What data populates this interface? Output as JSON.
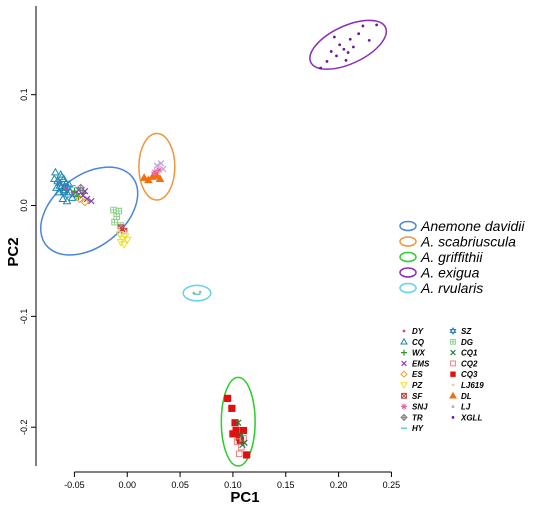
{
  "chart_data": {
    "type": "scatter",
    "xlabel": "PC1",
    "ylabel": "PC2",
    "xlim": [
      -0.075,
      0.26
    ],
    "ylim": [
      -0.235,
      0.18
    ],
    "xticks": [
      "-0.05",
      "0.00",
      "0.05",
      "0.10",
      "0.15",
      "0.20",
      "0.25"
    ],
    "xtick_values": [
      -0.05,
      0.0,
      0.05,
      0.1,
      0.15,
      0.2,
      0.25
    ],
    "yticks": [
      "-0.2",
      "-0.1",
      "0.0",
      "0.1"
    ],
    "ytick_values": [
      -0.2,
      -0.1,
      0.0,
      0.1
    ],
    "species_legend": [
      {
        "label": "Anemone davidii",
        "color": "#4a86d8"
      },
      {
        "label": "A. scabriuscula",
        "color": "#f0963a"
      },
      {
        "label": "A. griffithii",
        "color": "#2ecc2e"
      },
      {
        "label": "A. exigua",
        "color": "#8a2ab8"
      },
      {
        "label": "A. rvularis",
        "color": "#66d0e8"
      }
    ],
    "population_legend": {
      "left": [
        {
          "label": "DY",
          "marker": "dot",
          "color": "#e04080"
        },
        {
          "label": "CQ",
          "marker": "triangle",
          "color": "#1a8ab0"
        },
        {
          "label": "WX",
          "marker": "plus",
          "color": "#2a9a2a"
        },
        {
          "label": "EMS",
          "marker": "x",
          "color": "#8a3ab8"
        },
        {
          "label": "ES",
          "marker": "diamond",
          "color": "#e8a020"
        },
        {
          "label": "PZ",
          "marker": "triangle-down",
          "color": "#f0e020"
        },
        {
          "label": "SF",
          "marker": "square-x",
          "color": "#c04040"
        },
        {
          "label": "SNJ",
          "marker": "asterisk",
          "color": "#e860a0"
        },
        {
          "label": "TR",
          "marker": "diamond-plus",
          "color": "#808080"
        },
        {
          "label": "HY",
          "marker": "hline",
          "color": "#40c0c0"
        }
      ],
      "right": [
        {
          "label": "SZ",
          "marker": "star",
          "color": "#3080c0"
        },
        {
          "label": "DG",
          "marker": "grid",
          "color": "#80d080"
        },
        {
          "label": "CQ1",
          "marker": "x",
          "color": "#208040"
        },
        {
          "label": "CQ2",
          "marker": "square-open",
          "color": "#f08080"
        },
        {
          "label": "CQ3",
          "marker": "square",
          "color": "#e01010"
        },
        {
          "label": "LJ619",
          "marker": "dot",
          "color": "#f0d0a0"
        },
        {
          "label": "DL",
          "marker": "triangle",
          "color": "#f07010"
        },
        {
          "label": "LJ",
          "marker": "dot",
          "color": "#b0b0b0"
        },
        {
          "label": "XGLL",
          "marker": "dot",
          "color": "#6a1a9a"
        }
      ]
    },
    "ellipses": [
      {
        "species": "Anemone davidii",
        "cx": -0.036,
        "cy": -0.005,
        "rx": 0.052,
        "ry": 0.032,
        "angle_deg": 38
      },
      {
        "species": "A. scabriuscula",
        "cx": 0.028,
        "cy": 0.035,
        "rx": 0.017,
        "ry": 0.03,
        "angle_deg": 0
      },
      {
        "species": "A. griffithii",
        "cx": 0.105,
        "cy": -0.195,
        "rx": 0.016,
        "ry": 0.04,
        "angle_deg": 0
      },
      {
        "species": "A. exigua",
        "cx": 0.209,
        "cy": 0.145,
        "rx": 0.039,
        "ry": 0.017,
        "angle_deg": 25
      },
      {
        "species": "A. rvularis",
        "cx": 0.066,
        "cy": -0.079,
        "rx": 0.013,
        "ry": 0.007,
        "angle_deg": 0
      }
    ],
    "series": [
      {
        "name": "CQ",
        "marker": "triangle",
        "color": "#1a8ab0",
        "points": [
          [
            -0.068,
            0.03
          ],
          [
            -0.066,
            0.022
          ],
          [
            -0.064,
            0.018
          ],
          [
            -0.062,
            0.026
          ],
          [
            -0.06,
            0.014
          ],
          [
            -0.058,
            0.02
          ],
          [
            -0.056,
            0.01
          ],
          [
            -0.065,
            0.012
          ],
          [
            -0.061,
            0.006
          ],
          [
            -0.057,
            0.004
          ],
          [
            -0.063,
            0.028
          ],
          [
            -0.059,
            0.017
          ],
          [
            -0.054,
            0.012
          ],
          [
            -0.052,
            0.007
          ],
          [
            -0.067,
            0.016
          ],
          [
            -0.055,
            0.019
          ],
          [
            -0.06,
            0.024
          ],
          [
            -0.069,
            0.024
          ]
        ]
      },
      {
        "name": "SZ",
        "marker": "star",
        "color": "#3080c0",
        "points": [
          [
            -0.064,
            0.02
          ],
          [
            -0.06,
            0.012
          ],
          [
            -0.056,
            0.016
          ],
          [
            -0.05,
            0.01
          ]
        ]
      },
      {
        "name": "DY",
        "marker": "dot",
        "color": "#e04080",
        "points": [
          [
            -0.058,
            0.015
          ],
          [
            -0.052,
            0.012
          ],
          [
            -0.046,
            0.01
          ]
        ]
      },
      {
        "name": "WX",
        "marker": "plus",
        "color": "#2a9a2a",
        "points": [
          [
            -0.05,
            0.013
          ],
          [
            -0.046,
            0.008
          ],
          [
            -0.042,
            0.011
          ]
        ]
      },
      {
        "name": "EMS",
        "marker": "x",
        "color": "#8a3ab8",
        "points": [
          [
            -0.046,
            0.014
          ],
          [
            -0.042,
            0.009
          ],
          [
            -0.038,
            0.006
          ],
          [
            -0.034,
            0.004
          ],
          [
            -0.04,
            0.013
          ]
        ]
      },
      {
        "name": "ES",
        "marker": "diamond",
        "color": "#e8a020",
        "points": [
          [
            -0.045,
            0.006
          ],
          [
            -0.04,
            0.003
          ]
        ]
      },
      {
        "name": "HY",
        "marker": "hline",
        "color": "#40c0c0",
        "points": [
          [
            -0.052,
            0.018
          ],
          [
            -0.047,
            0.016
          ]
        ]
      },
      {
        "name": "TR",
        "marker": "diamond-plus",
        "color": "#808080",
        "points": [
          [
            -0.044,
            0.016
          ]
        ]
      },
      {
        "name": "DG",
        "marker": "grid",
        "color": "#80d080",
        "points": [
          [
            -0.013,
            -0.004
          ],
          [
            -0.01,
            -0.01
          ],
          [
            -0.008,
            -0.005
          ],
          [
            -0.012,
            -0.015
          ],
          [
            -0.006,
            -0.018
          ]
        ]
      },
      {
        "name": "SF",
        "marker": "square-x",
        "color": "#c04040",
        "points": [
          [
            -0.006,
            -0.02
          ],
          [
            -0.003,
            -0.023
          ]
        ]
      },
      {
        "name": "PZ",
        "marker": "triangle-down",
        "color": "#f0e020",
        "points": [
          [
            -0.007,
            -0.026
          ],
          [
            -0.004,
            -0.03
          ],
          [
            -0.002,
            -0.028
          ],
          [
            -0.006,
            -0.033
          ],
          [
            -0.003,
            -0.035
          ],
          [
            0.0,
            -0.031
          ]
        ]
      },
      {
        "name": "LJ619",
        "marker": "dot",
        "color": "#f0d0a0",
        "points": [
          [
            -0.008,
            -0.022
          ],
          [
            -0.001,
            -0.025
          ]
        ]
      },
      {
        "name": "DL",
        "marker": "triangle",
        "color": "#f07010",
        "points": [
          [
            0.016,
            0.025
          ],
          [
            0.02,
            0.023
          ],
          [
            0.024,
            0.026
          ],
          [
            0.028,
            0.027
          ],
          [
            0.031,
            0.024
          ]
        ]
      },
      {
        "name": "SNJ",
        "marker": "asterisk",
        "color": "#e860a0",
        "points": [
          [
            0.026,
            0.03
          ],
          [
            0.03,
            0.032
          ]
        ]
      },
      {
        "name": "EMS",
        "marker": "x",
        "color": "#c0a0d8",
        "points": [
          [
            0.028,
            0.036
          ],
          [
            0.032,
            0.038
          ],
          [
            0.034,
            0.033
          ]
        ]
      },
      {
        "name": "XGLL",
        "marker": "dot",
        "color": "#6a1a9a",
        "points": [
          [
            0.183,
            0.124
          ],
          [
            0.189,
            0.13
          ],
          [
            0.193,
            0.139
          ],
          [
            0.198,
            0.135
          ],
          [
            0.201,
            0.145
          ],
          [
            0.205,
            0.141
          ],
          [
            0.207,
            0.131
          ],
          [
            0.211,
            0.15
          ],
          [
            0.214,
            0.143
          ],
          [
            0.219,
            0.155
          ],
          [
            0.223,
            0.162
          ],
          [
            0.229,
            0.149
          ],
          [
            0.236,
            0.163
          ],
          [
            0.196,
            0.152
          ],
          [
            0.209,
            0.138
          ]
        ]
      },
      {
        "name": "LJ",
        "marker": "dot",
        "color": "#b0b0b0",
        "points": [
          [
            0.063,
            -0.079
          ],
          [
            0.069,
            -0.078
          ]
        ]
      },
      {
        "name": "HY",
        "marker": "hline",
        "color": "#40c0c0",
        "points": [
          [
            0.066,
            -0.08
          ]
        ]
      },
      {
        "name": "CQ3",
        "marker": "square",
        "color": "#e01010",
        "points": [
          [
            0.095,
            -0.174
          ],
          [
            0.099,
            -0.183
          ],
          [
            0.103,
            -0.203
          ],
          [
            0.106,
            -0.209
          ],
          [
            0.102,
            -0.196
          ],
          [
            0.11,
            -0.203
          ],
          [
            0.107,
            -0.212
          ],
          [
            0.113,
            -0.225
          ],
          [
            0.1,
            -0.206
          ]
        ]
      },
      {
        "name": "CQ2",
        "marker": "square-open",
        "color": "#f08080",
        "points": [
          [
            0.104,
            -0.213
          ],
          [
            0.108,
            -0.218
          ],
          [
            0.106,
            -0.224
          ],
          [
            0.11,
            -0.21
          ]
        ]
      },
      {
        "name": "CQ1",
        "marker": "x",
        "color": "#208040",
        "points": [
          [
            0.105,
            -0.196
          ],
          [
            0.108,
            -0.207
          ],
          [
            0.109,
            -0.216
          ],
          [
            0.111,
            -0.214
          ]
        ]
      }
    ]
  }
}
